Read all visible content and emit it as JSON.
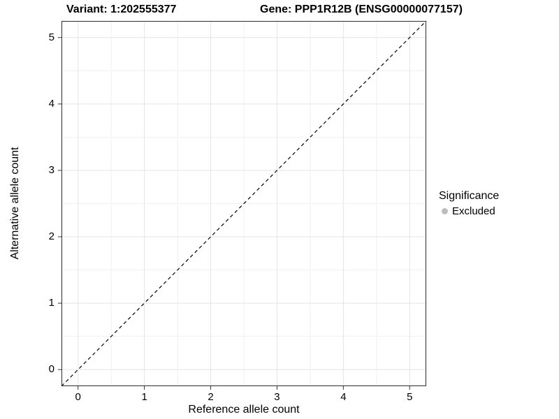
{
  "header": {
    "variant_title": "Variant: 1:202555377",
    "gene_title": "Gene: PPP1R12B (ENSG00000077157)"
  },
  "chart_data": {
    "type": "scatter",
    "xlabel": "Reference allele count",
    "ylabel": "Alternative allele count",
    "xlim": [
      -0.25,
      5.25
    ],
    "ylim": [
      -0.25,
      5.25
    ],
    "xticks": [
      0,
      1,
      2,
      3,
      4,
      5
    ],
    "yticks": [
      0,
      1,
      2,
      3,
      4,
      5
    ],
    "grid": "on",
    "points": [],
    "identity_line": {
      "style": "dashed",
      "from": [
        -0.25,
        -0.25
      ],
      "to": [
        5.25,
        5.25
      ],
      "color": "#000000"
    },
    "legend": {
      "title": "Significance",
      "position": "right",
      "entries": [
        {
          "label": "Excluded",
          "marker": "circle",
          "color": "#bdbdbd"
        }
      ]
    },
    "colors": {
      "panel_background": "#ffffff",
      "panel_border": "#2b2b2b",
      "grid_major": "#e4e4e4",
      "grid_minor": "#f1f1f1",
      "tick_mark": "#333333",
      "text": "#000000"
    }
  }
}
